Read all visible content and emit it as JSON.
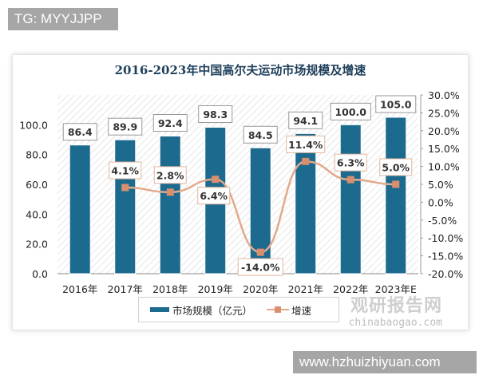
{
  "tags": {
    "top_left": "TG: MYYJJPP",
    "bottom_right": "www.hzhuizhiyuan.com"
  },
  "watermark": {
    "cn": "观研报告网",
    "en": "chinabaogao.com"
  },
  "colors": {
    "bar": "#1d6a8f",
    "line": "#e3a98b",
    "marker": "#d98f6d",
    "label_border_line": "#e0b59e"
  },
  "chart_data": {
    "type": "bar+line",
    "title": "2016-2023年中国高尔夫运动市场规模及增速",
    "categories": [
      "2016年",
      "2017年",
      "2018年",
      "2019年",
      "2020年",
      "2021年",
      "2022年",
      "2023年E"
    ],
    "series": [
      {
        "name": "市场规模（亿元）",
        "type": "bar",
        "axis": "left",
        "values": [
          86.4,
          89.9,
          92.4,
          98.3,
          84.5,
          94.1,
          100.0,
          105.0
        ],
        "labels": [
          "86.4",
          "89.9",
          "92.4",
          "98.3",
          "84.5",
          "94.1",
          "100.0",
          "105.0"
        ]
      },
      {
        "name": "增速",
        "type": "line",
        "axis": "right",
        "values": [
          null,
          4.1,
          2.8,
          6.4,
          -14.0,
          11.4,
          6.3,
          5.0
        ],
        "labels": [
          "",
          "4.1%",
          "2.8%",
          "6.4%",
          "-14.0%",
          "11.4%",
          "6.3%",
          "5.0%"
        ]
      }
    ],
    "left_axis": {
      "ylim": [
        0,
        120
      ],
      "ticks": [
        "0.0",
        "20.0",
        "40.0",
        "60.0",
        "80.0",
        "100.0"
      ]
    },
    "right_axis": {
      "ylim": [
        -20,
        30
      ],
      "ticks": [
        "30.0%",
        "25.0%",
        "20.0%",
        "15.0%",
        "10.0%",
        "5.0%",
        "0.0%",
        "-5.0%",
        "-10.0%",
        "-15.0%",
        "-20.0%"
      ]
    },
    "legend": {
      "position": "bottom",
      "entries": [
        "市场规模（亿元）",
        "增速"
      ]
    },
    "grid": false,
    "background": "diagonal hatch"
  }
}
